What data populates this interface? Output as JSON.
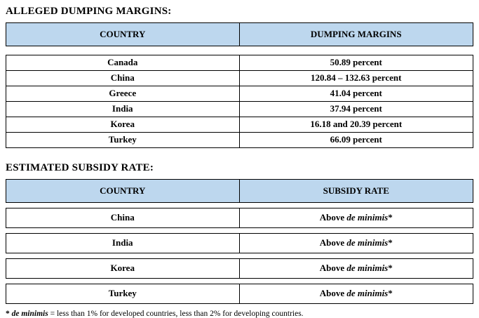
{
  "colors": {
    "header_bg": "#bdd7ee",
    "border": "#000000",
    "page_bg": "#ffffff"
  },
  "dumping": {
    "title": "ALLEGED DUMPING MARGINS:",
    "columns": [
      "COUNTRY",
      "DUMPING MARGINS"
    ],
    "rows": [
      {
        "country": "Canada",
        "value": "50.89 percent"
      },
      {
        "country": "China",
        "value": "120.84 – 132.63 percent"
      },
      {
        "country": "Greece",
        "value": "41.04 percent"
      },
      {
        "country": "India",
        "value": "37.94 percent"
      },
      {
        "country": "Korea",
        "value": "16.18 and 20.39 percent"
      },
      {
        "country": "Turkey",
        "value": "66.09 percent"
      }
    ]
  },
  "subsidy": {
    "title": "ESTIMATED SUBSIDY RATE:",
    "columns": [
      "COUNTRY",
      "SUBSIDY RATE"
    ],
    "rows": [
      {
        "country": "China",
        "value_prefix": "Above ",
        "value_italic": "de minimis",
        "value_suffix": "*"
      },
      {
        "country": "India",
        "value_prefix": "Above ",
        "value_italic": "de minimis",
        "value_suffix": "*"
      },
      {
        "country": "Korea",
        "value_prefix": "Above ",
        "value_italic": "de minimis",
        "value_suffix": "*"
      },
      {
        "country": "Turkey",
        "value_prefix": "Above ",
        "value_italic": "de minimis",
        "value_suffix": "*"
      }
    ]
  },
  "footnote": {
    "star": "* ",
    "term": "de minimis",
    "rest": " = less than 1% for developed countries, less than 2% for developing countries."
  }
}
